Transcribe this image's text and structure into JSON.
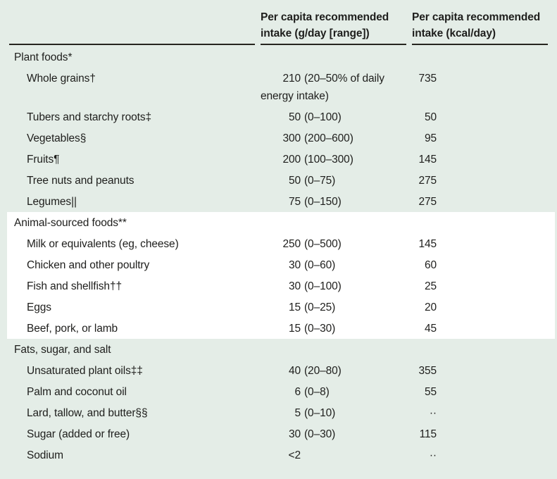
{
  "header": {
    "col_gday": "Per capita recommended intake (g/day [range])",
    "col_kcal": "Per capita recommended intake (kcal/day)"
  },
  "colors": {
    "background": "#e4ede7",
    "highlight_band": "#ffffff",
    "text": "#1e1e1c",
    "rule": "#26251f"
  },
  "missing_value_symbol": "··",
  "sections": [
    {
      "label": "Plant foods*",
      "highlight": false,
      "rows": [
        {
          "label": "Whole grains†",
          "g_num": "210",
          "g_range": "(20–50% of daily energy intake)",
          "kcal": "735"
        },
        {
          "label": "Tubers and starchy roots‡",
          "g_num": "50",
          "g_range": "(0–100)",
          "kcal": "50"
        },
        {
          "label": "Vegetables§",
          "g_num": "300",
          "g_range": "(200–600)",
          "kcal": "95"
        },
        {
          "label": "Fruits¶",
          "g_num": "200",
          "g_range": "(100–300)",
          "kcal": "145"
        },
        {
          "label": "Tree nuts and peanuts",
          "g_num": "50",
          "g_range": "(0–75)",
          "kcal": "275"
        },
        {
          "label": "Legumes||",
          "g_num": "75",
          "g_range": "(0–150)",
          "kcal": "275"
        }
      ]
    },
    {
      "label": "Animal-sourced foods**",
      "highlight": true,
      "rows": [
        {
          "label": "Milk or equivalents (eg, cheese)",
          "g_num": "250",
          "g_range": "(0–500)",
          "kcal": "145"
        },
        {
          "label": "Chicken and other poultry",
          "g_num": "30",
          "g_range": "(0–60)",
          "kcal": "60"
        },
        {
          "label": "Fish and shellfish††",
          "g_num": "30",
          "g_range": "(0–100)",
          "kcal": "25"
        },
        {
          "label": "Eggs",
          "g_num": "15",
          "g_range": "(0–25)",
          "kcal": "20"
        },
        {
          "label": "Beef, pork, or lamb",
          "g_num": "15",
          "g_range": "(0–30)",
          "kcal": "45"
        }
      ]
    },
    {
      "label": "Fats, sugar, and salt",
      "highlight": false,
      "rows": [
        {
          "label": "Unsaturated plant oils‡‡",
          "g_num": "40",
          "g_range": "(20–80)",
          "kcal": "355"
        },
        {
          "label": "Palm and coconut oil",
          "g_num": "6",
          "g_range": "(0–8)",
          "kcal": "55"
        },
        {
          "label": "Lard, tallow, and butter§§",
          "g_num": "5",
          "g_range": "(0–10)",
          "kcal": "··"
        },
        {
          "label": "Sugar (added or free)",
          "g_num": "30",
          "g_range": "(0–30)",
          "kcal": "115"
        },
        {
          "label": "Sodium",
          "g_num": "<2",
          "g_range": "",
          "kcal": "··"
        }
      ]
    }
  ]
}
